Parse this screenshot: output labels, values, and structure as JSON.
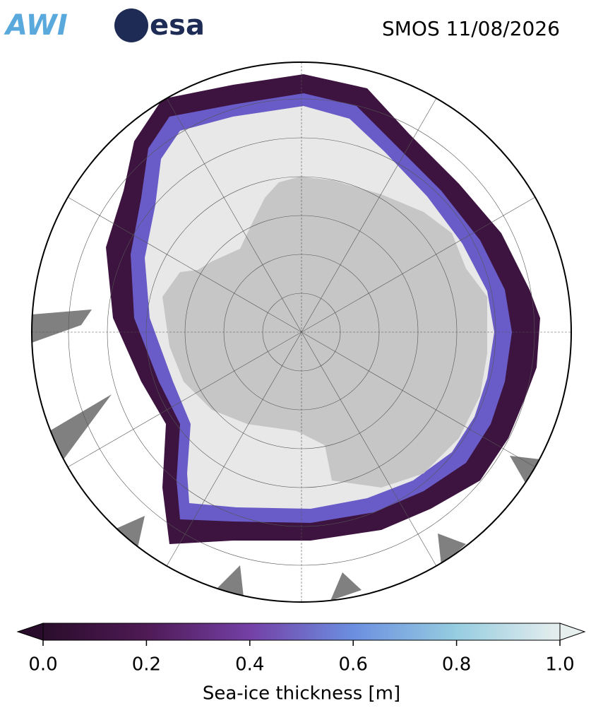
{
  "header": {
    "logos": [
      "AWI",
      "esa"
    ],
    "title": "SMOS 11/08/2026"
  },
  "colorbar": {
    "label": "Sea-ice thickness [m]",
    "lim": [
      0,
      1
    ],
    "ticks": [
      {
        "value": 0,
        "label": "0.0"
      },
      0.2,
      0.4,
      0.6,
      0.8,
      {
        "value": 1,
        "label": "1.0"
      }
    ]
  }
}
